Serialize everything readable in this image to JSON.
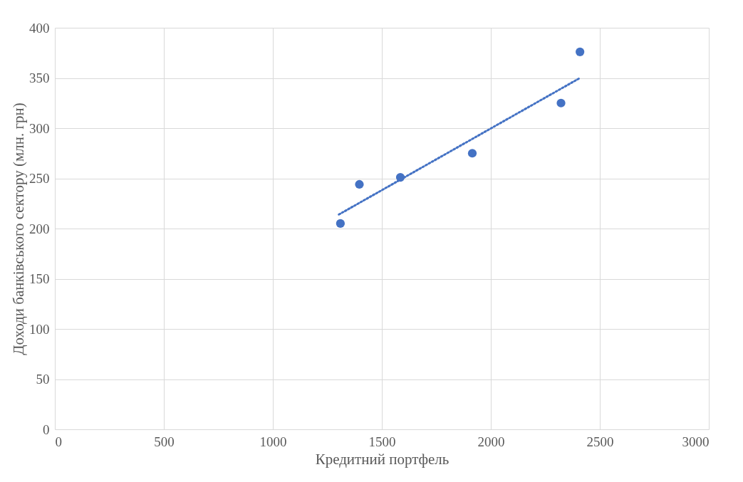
{
  "chart_data": {
    "type": "scatter",
    "xlabel": "Кредитний портфель",
    "ylabel": "Доходи банківського сектору (млн. грн)",
    "xlim": [
      0,
      3000
    ],
    "xticks": [
      0,
      500,
      1000,
      1500,
      2000,
      2500,
      3000
    ],
    "ylim": [
      0,
      400
    ],
    "yticks": [
      0,
      50,
      100,
      150,
      200,
      250,
      300,
      350,
      400
    ],
    "grid": true,
    "series": [
      {
        "type": "scatter",
        "marker": "circle",
        "color": "#4472c4",
        "x": [
          1310,
          1397,
          1585,
          1915,
          2322,
          2409
        ],
        "values": [
          205,
          244,
          251,
          275,
          325,
          376
        ]
      },
      {
        "type": "line",
        "color": "#4472c4",
        "line_style": "dotted",
        "marker": "none",
        "x": [
          1303,
          2409
        ],
        "values": [
          214,
          350
        ]
      }
    ]
  }
}
